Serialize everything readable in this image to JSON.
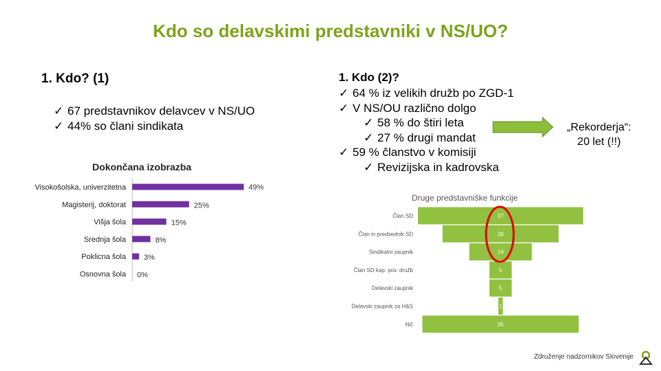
{
  "page": {
    "title": "Kdo so delavskimi predstavniki v NS/UO?"
  },
  "left": {
    "heading": "1. Kdo? (1)",
    "bullets": [
      "67 predstavnikov delavcev v NS/UO",
      "44% so člani sindikata"
    ]
  },
  "right": {
    "heading": "1. Kdo (2)?",
    "items": [
      {
        "text": "64 % iz velikih družb po ZGD-1",
        "level": 1
      },
      {
        "text": "V NS/OU različno dolgo",
        "level": 1
      },
      {
        "text": "58 % do štiri leta",
        "level": 2
      },
      {
        "text": "27 % drugi mandat",
        "level": 2
      },
      {
        "text": "59 % članstvo v komisiji",
        "level": 1
      },
      {
        "text": "Revizijska in kadrovska",
        "level": 2
      }
    ],
    "check_glyph": "✓"
  },
  "callout": {
    "line1": "„Rekorderja“:",
    "line2": "20 let (!!)"
  },
  "footer": {
    "org": "Združenje nadzornikov Slovenije"
  },
  "colors": {
    "title_green": "#7ea31a",
    "bar_purple": "#7030a0",
    "funnel_green": "#92c040",
    "arrow_green": "#8dbd3a",
    "circle_red": "#e00000"
  },
  "chart_data": [
    {
      "type": "bar",
      "orientation": "horizontal",
      "title": "Dokončana izobrazba",
      "categories": [
        "Visokošolska, univerzitetna",
        "Magisterij, doktorat",
        "Višja šola",
        "Srednja šola",
        "Poklicna šola",
        "Osnovna šola"
      ],
      "values": [
        49,
        25,
        15,
        8,
        3,
        0
      ],
      "value_labels": [
        "49%",
        "25%",
        "15%",
        "8%",
        "3%",
        "0%"
      ],
      "xlim": [
        0,
        49
      ],
      "grid": false
    },
    {
      "type": "bar",
      "orientation": "funnel",
      "title": "Druge predstavniške funkcije",
      "categories": [
        "Član SD",
        "Član in predsednik SD",
        "Sindikalni zaupnik",
        "Član SD kap. pov. družb",
        "Delavski zaupnik",
        "Delavski zaupnik za H&S",
        "Nič"
      ],
      "values": [
        37,
        26,
        14,
        5,
        5,
        1,
        35
      ],
      "value_labels": [
        "37",
        "26",
        "14",
        "5",
        "5",
        "1",
        "35"
      ],
      "grid": false
    }
  ]
}
